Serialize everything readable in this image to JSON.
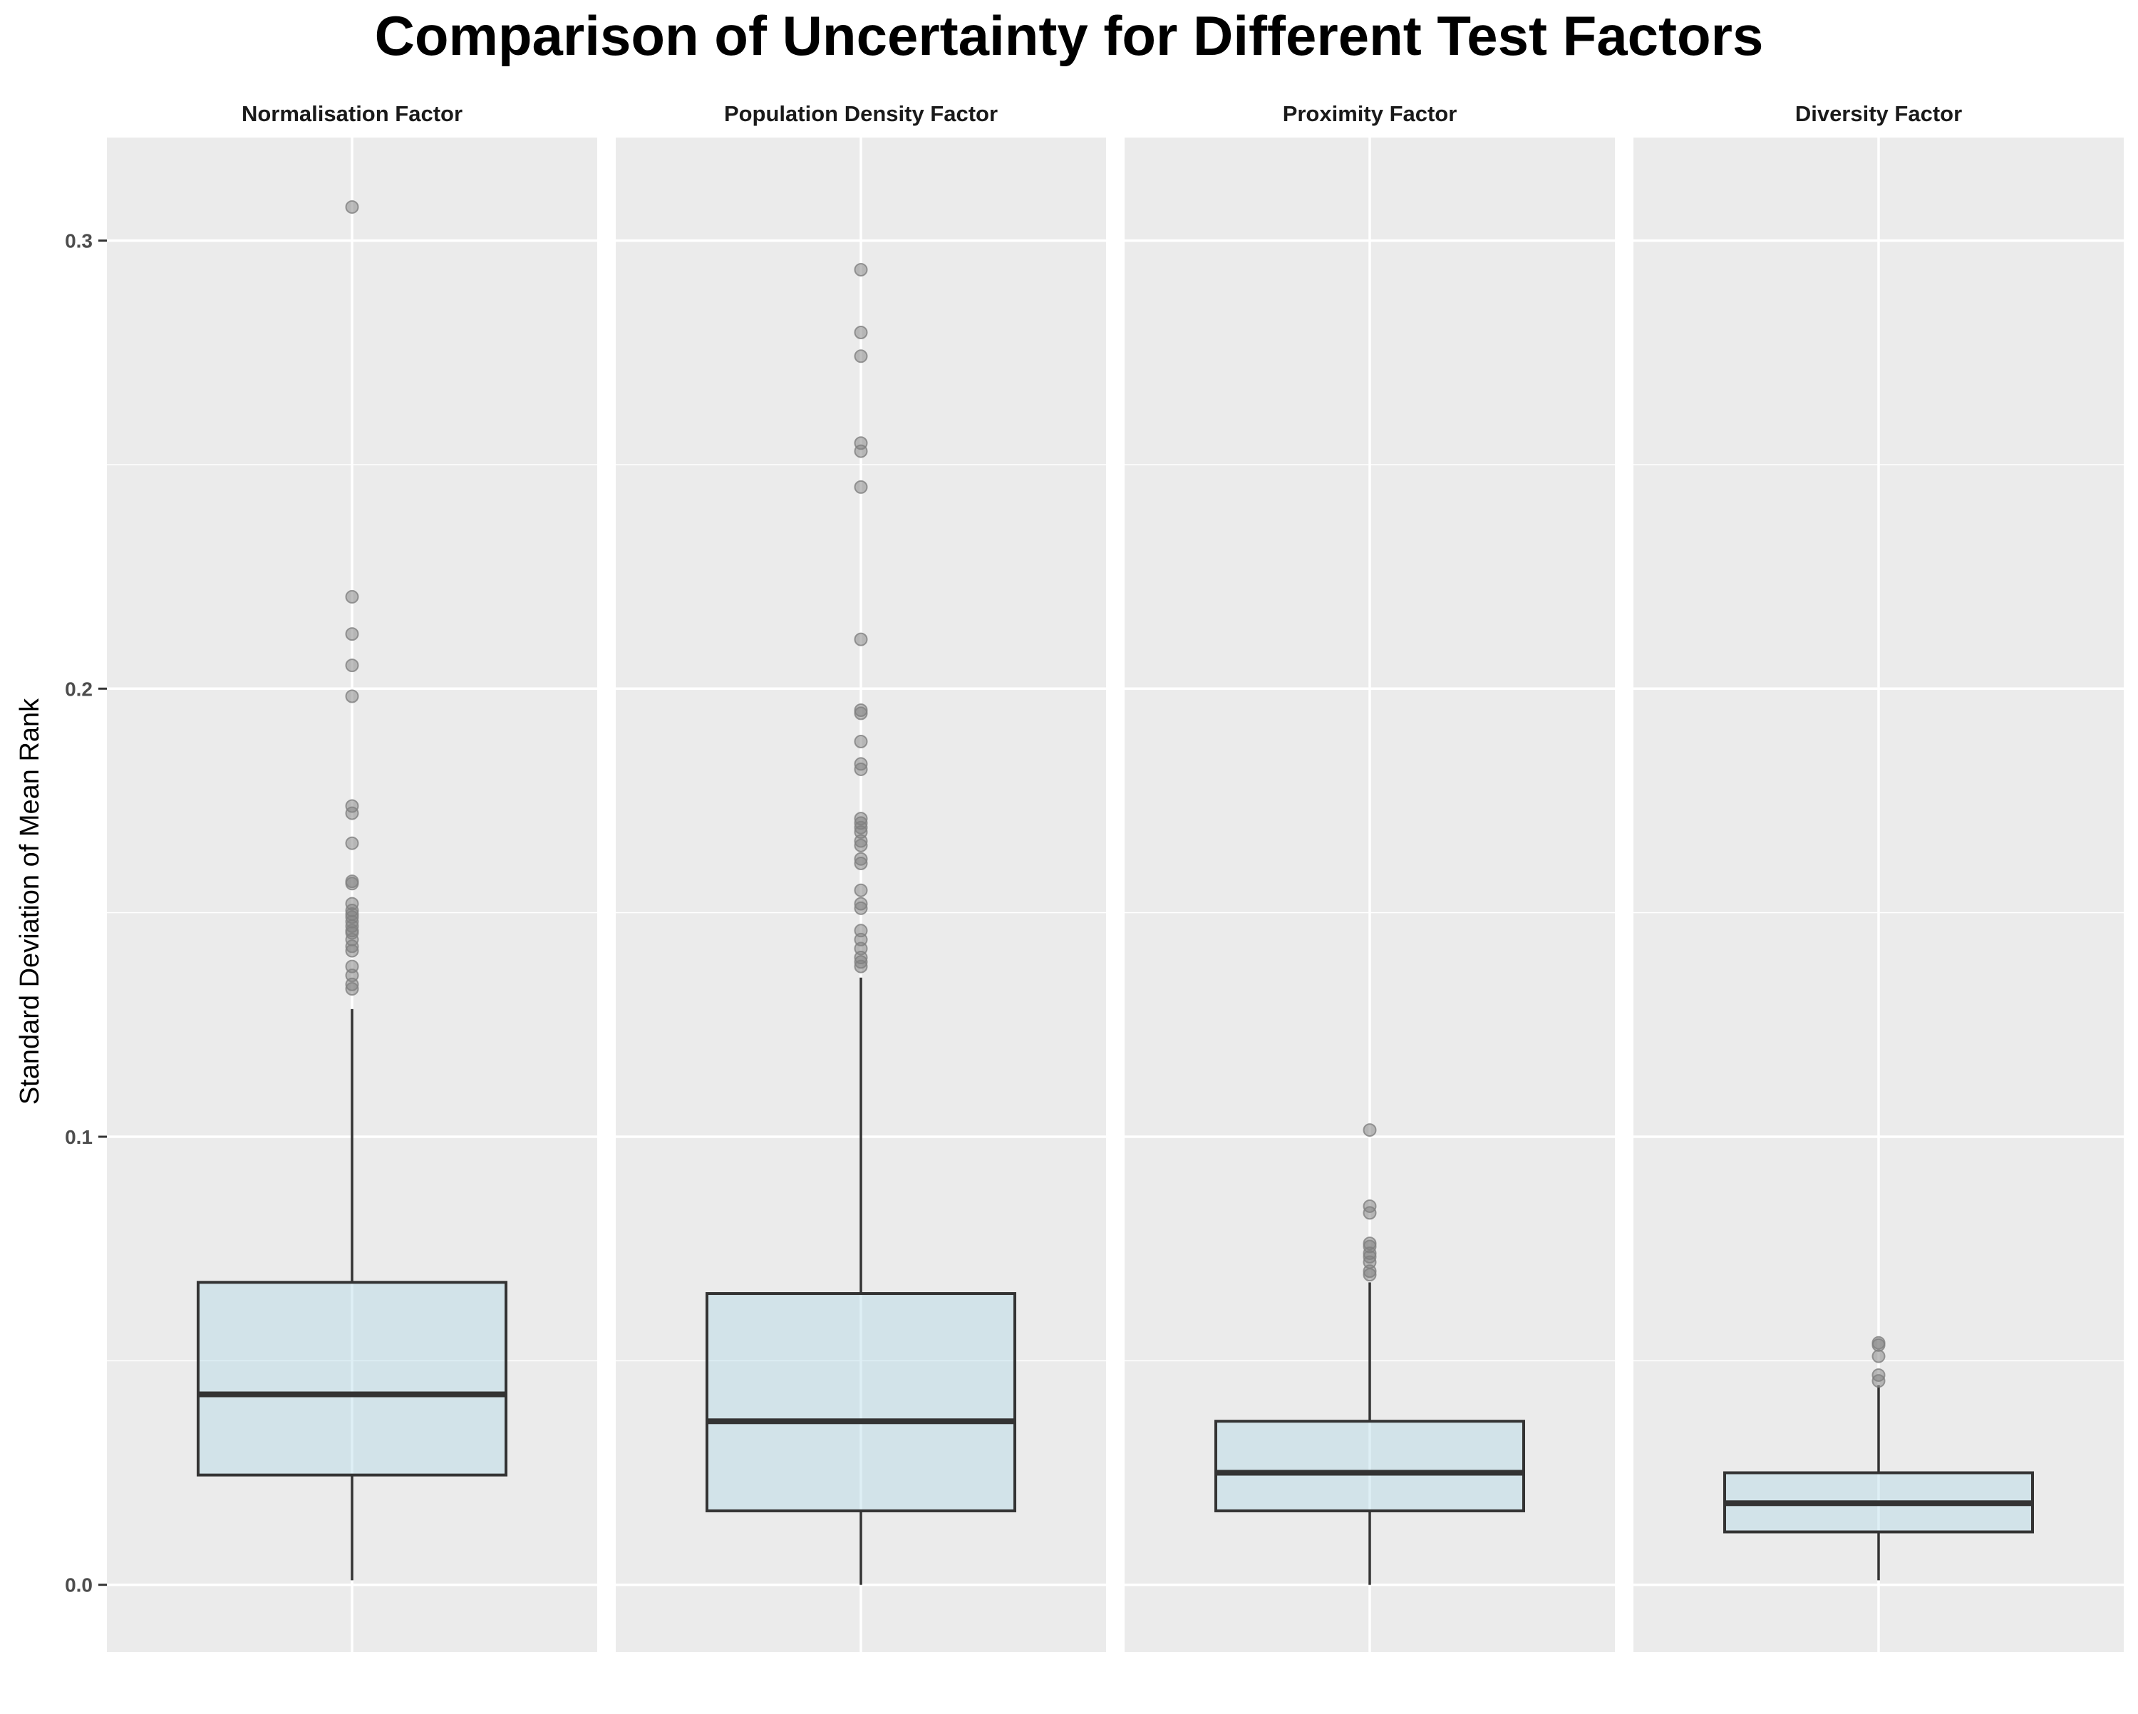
{
  "chart_data": {
    "type": "boxplot",
    "title": "Comparison of Uncertainty for Different Test Factors",
    "xlabel": "",
    "ylabel": "Standard Deviation of Mean Rank",
    "ylim": [
      -0.015,
      0.323
    ],
    "yticks": [
      0.0,
      0.1,
      0.2,
      0.3
    ],
    "ytick_labels": [
      "0.0",
      "0.1",
      "0.2",
      "0.3"
    ],
    "grid": true,
    "legend": "none",
    "panels": [
      {
        "name": "Normalisation Factor",
        "whisker_low": 0.001,
        "q1": 0.0245,
        "median": 0.0425,
        "q3": 0.0675,
        "whisker_high": 0.1285,
        "outliers": [
          0.3075,
          0.2205,
          0.2122,
          0.2052,
          0.1983,
          0.1738,
          0.1722,
          0.1655,
          0.157,
          0.1565,
          0.152,
          0.1505,
          0.1497,
          0.149,
          0.148,
          0.147,
          0.146,
          0.1455,
          0.144,
          0.1425,
          0.1415,
          0.138,
          0.136,
          0.134,
          0.133
        ]
      },
      {
        "name": "Population Density Factor",
        "whisker_low": 0.0,
        "q1": 0.0165,
        "median": 0.0365,
        "q3": 0.065,
        "whisker_high": 0.1355,
        "outliers": [
          0.2935,
          0.2795,
          0.2742,
          0.2548,
          0.253,
          0.245,
          0.211,
          0.1952,
          0.1945,
          0.1882,
          0.1832,
          0.182,
          0.171,
          0.17,
          0.169,
          0.168,
          0.166,
          0.165,
          0.162,
          0.161,
          0.155,
          0.152,
          0.151,
          0.146,
          0.144,
          0.142,
          0.14,
          0.139,
          0.138
        ]
      },
      {
        "name": "Proximity Factor",
        "whisker_low": 0.0,
        "q1": 0.0165,
        "median": 0.025,
        "q3": 0.0365,
        "whisker_high": 0.0675,
        "outliers": [
          0.1015,
          0.0845,
          0.083,
          0.0762,
          0.0755,
          0.074,
          0.0732,
          0.072,
          0.07,
          0.0692
        ]
      },
      {
        "name": "Diversity Factor",
        "whisker_low": 0.001,
        "q1": 0.0118,
        "median": 0.0182,
        "q3": 0.025,
        "whisker_high": 0.0445,
        "outliers": [
          0.054,
          0.0535,
          0.051,
          0.0468,
          0.0455
        ]
      }
    ],
    "colors": {
      "panel_bg": "#ebebeb",
      "grid_major": "#ffffff",
      "box_fill": "#add8e6",
      "box_fill_opacity": 0.4,
      "box_line": "#333333",
      "outlier": "#7f7f7f"
    }
  }
}
